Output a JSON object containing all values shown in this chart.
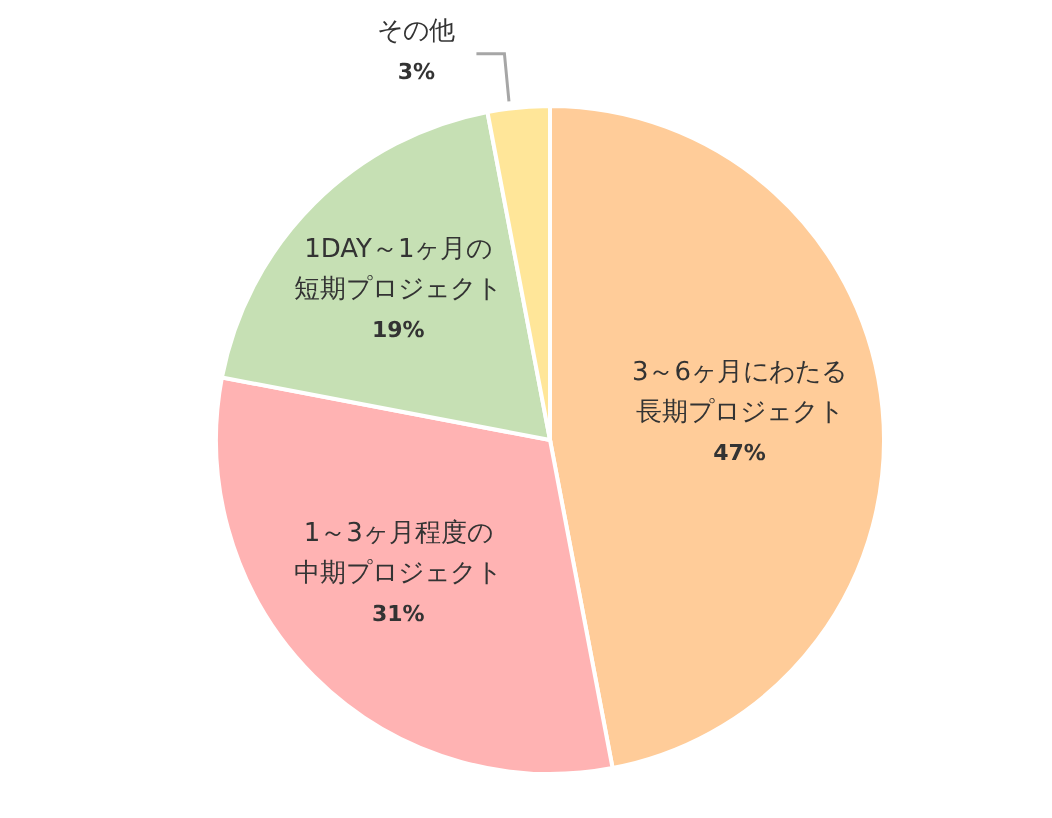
{
  "chart_data": {
    "type": "pie",
    "categories": [
      "3～6ヶ月にわたる長期プロジェクト",
      "1～3ヶ月程度の中期プロジェクト",
      "1DAY～1ヶ月の短期プロジェクト",
      "その他"
    ],
    "values": [
      47,
      31,
      19,
      3
    ],
    "value_labels": [
      "47%",
      "31%",
      "19%",
      "3%"
    ],
    "colors": [
      "#ffcc99",
      "#ffb3b3",
      "#c6e0b4",
      "#ffe699"
    ],
    "legend": false
  }
}
